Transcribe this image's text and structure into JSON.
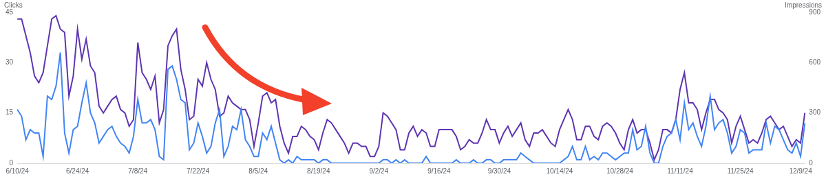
{
  "chart_data": {
    "type": "line",
    "ylabel": "Clicks",
    "y2label": "Impressions",
    "categories": [
      "6/10/24",
      null,
      null,
      null,
      null,
      null,
      null,
      null,
      null,
      null,
      null,
      null,
      null,
      null,
      "6/24/24",
      null,
      null,
      null,
      null,
      null,
      null,
      null,
      null,
      null,
      null,
      null,
      null,
      null,
      "7/8/24",
      null,
      null,
      null,
      null,
      null,
      null,
      null,
      null,
      null,
      null,
      null,
      null,
      null,
      "7/22/24",
      null,
      null,
      null,
      null,
      null,
      null,
      null,
      null,
      null,
      null,
      null,
      null,
      null,
      "8/5/24",
      null,
      null,
      null,
      null,
      null,
      null,
      null,
      null,
      null,
      null,
      null,
      null,
      null,
      "8/19/24",
      null,
      null,
      null,
      null,
      null,
      null,
      null,
      null,
      null,
      null,
      null,
      null,
      null,
      "9/2/24",
      null,
      null,
      null,
      null,
      null,
      null,
      null,
      null,
      null,
      null,
      null,
      null,
      null,
      "9/16/24",
      null,
      null,
      null,
      null,
      null,
      null,
      null,
      null,
      null,
      null,
      null,
      null,
      null,
      "9/30/24",
      null,
      null,
      null,
      null,
      null,
      null,
      null,
      null,
      null,
      null,
      null,
      null,
      null,
      "10/14/24",
      null,
      null,
      null,
      null,
      null,
      null,
      null,
      null,
      null,
      null,
      null,
      null,
      null,
      "10/28/24",
      null,
      null,
      null,
      null,
      null,
      null,
      null,
      null,
      null,
      null,
      null,
      null,
      null,
      "11/11/24",
      null,
      null,
      null,
      null,
      null,
      null,
      null,
      null,
      null,
      null,
      null,
      null,
      null,
      "11/25/24",
      null,
      null,
      null,
      null,
      null,
      null,
      null,
      null,
      null,
      null,
      null,
      null,
      null,
      "12/9/24",
      null
    ],
    "series": [
      {
        "color": "#4285f4",
        "values": [
          16,
          14,
          7,
          10,
          9,
          9,
          2,
          20,
          19,
          23,
          33,
          9,
          3,
          10,
          11,
          18,
          24,
          15,
          12,
          6,
          8,
          10,
          11,
          8,
          6,
          5,
          3,
          8,
          19,
          12,
          12,
          13,
          10,
          2,
          1,
          28,
          29,
          25,
          19,
          18,
          4,
          6,
          12,
          8,
          3,
          5,
          12,
          16,
          2,
          5,
          11,
          10,
          16,
          7,
          5,
          2,
          2,
          9,
          7,
          11,
          6,
          1,
          0,
          1,
          0,
          2,
          1,
          1,
          1,
          1,
          0,
          1,
          1,
          0,
          0,
          0,
          0,
          0,
          0,
          0,
          0,
          0,
          0,
          0,
          0,
          1,
          1,
          0,
          1,
          0,
          1,
          0,
          0,
          0,
          0,
          2,
          0,
          0,
          0,
          0,
          0,
          0,
          1,
          0,
          0,
          0,
          1,
          0,
          0,
          1,
          1,
          0,
          0,
          1,
          1,
          1,
          1,
          3,
          2,
          1,
          0,
          0,
          0,
          0,
          0,
          0,
          0,
          1,
          2,
          5,
          1,
          1,
          5,
          1,
          2,
          1,
          3,
          3,
          2,
          1,
          2,
          3,
          3,
          10,
          4,
          5,
          11,
          3,
          0,
          0,
          5,
          8,
          9,
          13,
          7,
          18,
          10,
          12,
          8,
          5,
          11,
          20,
          10,
          12,
          13,
          9,
          3,
          5,
          10,
          9,
          3,
          4,
          4,
          4,
          12,
          6,
          11,
          10,
          7,
          4,
          3,
          6,
          2,
          12
        ]
      },
      {
        "color": "#5e35b1",
        "axis": "y2",
        "values": [
          860,
          860,
          760,
          660,
          520,
          480,
          540,
          700,
          860,
          880,
          800,
          780,
          400,
          520,
          800,
          620,
          740,
          580,
          540,
          340,
          300,
          340,
          380,
          400,
          320,
          300,
          220,
          260,
          720,
          540,
          500,
          440,
          520,
          240,
          320,
          700,
          760,
          800,
          560,
          440,
          260,
          280,
          500,
          460,
          600,
          500,
          440,
          280,
          300,
          400,
          360,
          340,
          320,
          320,
          260,
          100,
          240,
          400,
          420,
          360,
          380,
          220,
          120,
          60,
          160,
          160,
          220,
          200,
          160,
          140,
          80,
          180,
          260,
          240,
          200,
          160,
          120,
          60,
          120,
          120,
          100,
          100,
          40,
          40,
          100,
          300,
          280,
          240,
          200,
          80,
          80,
          180,
          220,
          160,
          200,
          180,
          100,
          100,
          200,
          200,
          200,
          200,
          160,
          80,
          100,
          140,
          120,
          120,
          180,
          260,
          200,
          200,
          120,
          180,
          220,
          160,
          200,
          240,
          140,
          100,
          180,
          180,
          200,
          160,
          120,
          100,
          200,
          260,
          320,
          260,
          140,
          140,
          220,
          220,
          160,
          140,
          220,
          240,
          220,
          180,
          120,
          80,
          200,
          260,
          180,
          200,
          200,
          120,
          20,
          80,
          200,
          200,
          180,
          260,
          440,
          540,
          360,
          360,
          320,
          200,
          300,
          380,
          380,
          320,
          300,
          260,
          120,
          220,
          280,
          200,
          120,
          140,
          120,
          180,
          260,
          280,
          240,
          200,
          220,
          160,
          100,
          140,
          120,
          300
        ]
      }
    ],
    "ylim": [
      0,
      45
    ],
    "yticks": [
      0,
      15,
      30,
      45
    ],
    "y2lim": [
      0,
      900
    ],
    "y2ticks": [
      0,
      300,
      600,
      900
    ],
    "grid": false
  }
}
